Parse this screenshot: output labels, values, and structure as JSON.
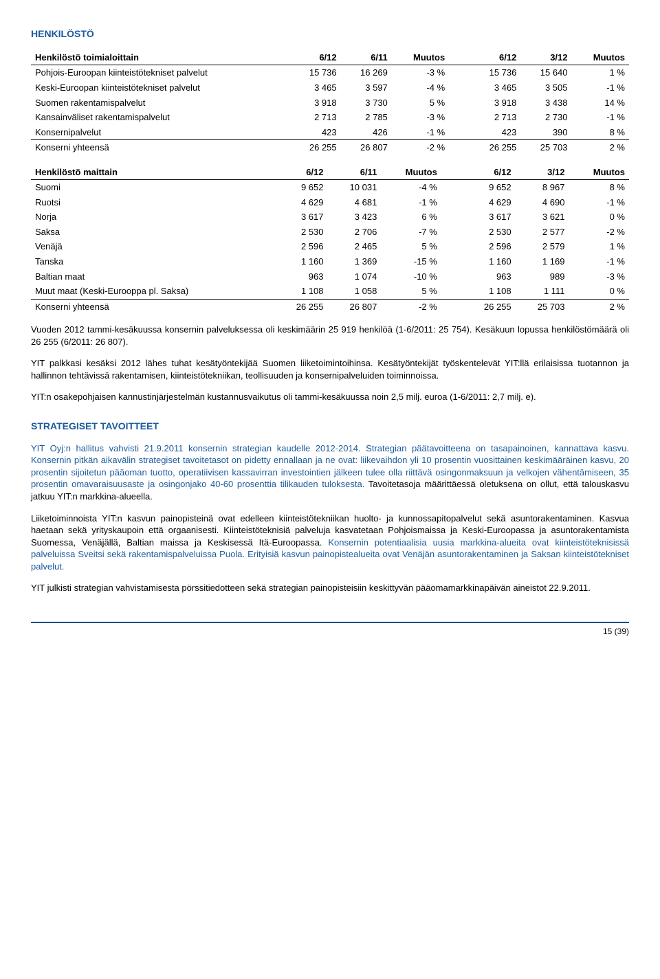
{
  "title": "HENKILÖSTÖ",
  "table1": {
    "header": [
      "Henkilöstö toimialoittain",
      "6/12",
      "6/11",
      "Muutos",
      "6/12",
      "3/12",
      "Muutos"
    ],
    "rows": [
      [
        "Pohjois-Euroopan kiinteistötekniset palvelut",
        "15 736",
        "16 269",
        "-3 %",
        "15 736",
        "15 640",
        "1 %"
      ],
      [
        "Keski-Euroopan kiinteistötekniset palvelut",
        "3 465",
        "3 597",
        "-4 %",
        "3 465",
        "3 505",
        "-1 %"
      ],
      [
        "Suomen rakentamispalvelut",
        "3 918",
        "3 730",
        "5 %",
        "3 918",
        "3 438",
        "14 %"
      ],
      [
        "Kansainväliset rakentamispalvelut",
        "2 713",
        "2 785",
        "-3 %",
        "2 713",
        "2 730",
        "-1 %"
      ],
      [
        "Konsernipalvelut",
        "423",
        "426",
        "-1 %",
        "423",
        "390",
        "8 %"
      ],
      [
        "Konserni yhteensä",
        "26 255",
        "26 807",
        "-2 %",
        "26 255",
        "25 703",
        "2 %"
      ]
    ]
  },
  "table2": {
    "header": [
      "Henkilöstö maittain",
      "6/12",
      "6/11",
      "Muutos",
      "6/12",
      "3/12",
      "Muutos"
    ],
    "rows": [
      [
        "Suomi",
        "9 652",
        "10 031",
        "-4 %",
        "9 652",
        "8 967",
        "8 %"
      ],
      [
        "Ruotsi",
        "4 629",
        "4 681",
        "-1 %",
        "4 629",
        "4 690",
        "-1 %"
      ],
      [
        "Norja",
        "3 617",
        "3 423",
        "6 %",
        "3 617",
        "3 621",
        "0 %"
      ],
      [
        "Saksa",
        "2 530",
        "2 706",
        "-7 %",
        "2 530",
        "2 577",
        "-2 %"
      ],
      [
        "Venäjä",
        "2 596",
        "2 465",
        "5 %",
        "2 596",
        "2 579",
        "1 %"
      ],
      [
        "Tanska",
        "1 160",
        "1 369",
        "-15 %",
        "1 160",
        "1 169",
        "-1 %"
      ],
      [
        "Baltian maat",
        "963",
        "1 074",
        "-10 %",
        "963",
        "989",
        "-3 %"
      ],
      [
        "Muut maat (Keski-Eurooppa pl. Saksa)",
        "1 108",
        "1 058",
        "5 %",
        "1 108",
        "1 111",
        "0 %"
      ],
      [
        "Konserni yhteensä",
        "26 255",
        "26 807",
        "-2 %",
        "26 255",
        "25 703",
        "2 %"
      ]
    ]
  },
  "p1": "Vuoden 2012 tammi-kesäkuussa konsernin palveluksessa oli keskimäärin 25 919 henkilöä (1-6/2011: 25 754). Kesäkuun lopussa henkilöstömäärä oli 26 255 (6/2011: 26 807).",
  "p2": "YIT palkkasi kesäksi 2012 lähes tuhat kesätyöntekijää Suomen liiketoimintoihinsa. Kesätyöntekijät työskentelevät YIT:llä erilaisissa tuotannon ja hallinnon tehtävissä rakentamisen, kiinteistötekniikan, teollisuuden ja konsernipalveluiden toiminnoissa.",
  "p3": "YIT:n osakepohjaisen kannustinjärjestelmän kustannusvaikutus oli tammi-kesäkuussa noin 2,5 milj. euroa (1-6/2011: 2,7 milj. e).",
  "strategiset_title": "STRATEGISET TAVOITTEET",
  "p4": "YIT Oyj:n hallitus vahvisti 21.9.2011 konsernin strategian kaudelle 2012-2014. Strategian päätavoitteena on tasapainoinen, kannattava kasvu. Konsernin pitkän aikavälin strategiset tavoitetasot on pidetty ennallaan ja ne ovat: liikevaihdon yli 10 prosentin vuosittainen keskimääräinen kasvu, 20 prosentin sijoitetun pääoman tuotto, operatiivisen kassavirran investointien jälkeen tulee olla riittävä osingonmaksuun ja velkojen vähentämiseen, 35 prosentin omavaraisuusaste ja osingonjako 40-60 prosenttia tilikauden tuloksesta. ",
  "p4b": "Tavoitetasoja määrittäessä oletuksena on ollut, että talouskasvu jatkuu YIT:n markkina-alueella.",
  "p5": "Liiketoiminnoista YIT:n kasvun painopisteinä ovat edelleen kiinteistötekniikan huolto- ja kunnossapitopalvelut sekä asuntorakentaminen. Kasvua haetaan sekä yrityskaupoin että orgaanisesti. Kiinteistöteknisiä palveluja kasvatetaan Pohjoismaissa ja Keski-Euroopassa ja asuntorakentamista Suomessa, Venäjällä, Baltian maissa ja Keskisessä Itä-Euroopassa. ",
  "p5b": "Konsernin potentiaalisia uusia markkina-alueita ovat kiinteistöteknisissä palveluissa Sveitsi sekä rakentamispalveluissa Puola. Erityisiä kasvun painopistealueita ovat Venäjän asuntorakentaminen ja Saksan kiinteistötekniset palvelut.",
  "p6": "YIT julkisti strategian vahvistamisesta pörssitiedotteen sekä strategian painopisteisiin keskittyvän pääomamarkkinapäivän aineistot 22.9.2011.",
  "footer": "15 (39)"
}
